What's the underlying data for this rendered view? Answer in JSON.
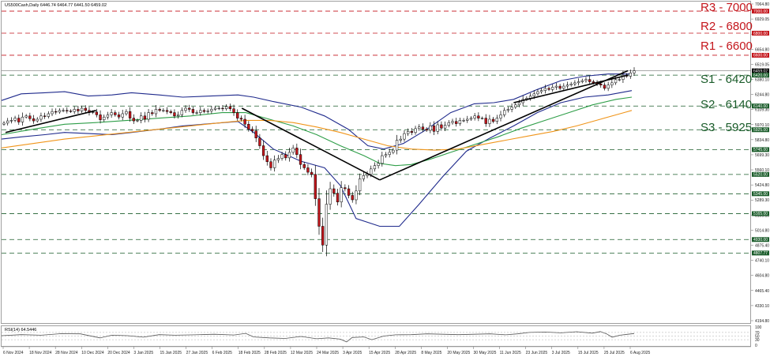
{
  "chart_title": "US500Cash,Daily  6446.74 6464.77 6441.50 6459.02",
  "rsi_title": "RSI(14) 64.5446",
  "colors": {
    "up": "#ffffff",
    "down": "#c4161c",
    "bb": "#1f2a8c",
    "ma_green": "#2e9e48",
    "ma_orange": "#f0951a",
    "trend": "#000000",
    "resistance": "#c4161c",
    "support": "#1a5c2a",
    "rsi": "#555555"
  },
  "labels": {
    "r3": "R3 - 7000",
    "r2": "R2 - 6800",
    "r1": "R1 - 6600",
    "s1": "S1 - 6420",
    "s2": "S2 - 6140",
    "s3": "S3 - 5925"
  },
  "price_ticks": [
    "7064.80",
    "6929.05",
    "6790.65",
    "6654.80",
    "6519.05",
    "6380.10",
    "6244.80",
    "6109.30",
    "5970.10",
    "5834.80",
    "5699.30",
    "5560.10",
    "5424.80",
    "5289.30",
    "5150.10",
    "5014.80",
    "4875.40",
    "4740.10",
    "4604.80",
    "4465.40",
    "4330.10",
    "4194.80"
  ],
  "level_tags": [
    "7000.00",
    "6800.00",
    "6600.00",
    "6459.02",
    "6420.00",
    "6140.00",
    "5925.00",
    "5745.00",
    "5520.00",
    "5345.00",
    "5165.00",
    "4930.00",
    "4807.77"
  ],
  "rsi_ticks": [
    "100",
    "70",
    "50",
    "30",
    "0"
  ],
  "date_ticks": [
    "6 Nov 2024",
    "18 Nov 2024",
    "28 Nov 2024",
    "10 Dec 2024",
    "20 Dec 2024",
    "3 Jan 2025",
    "15 Jan 2025",
    "27 Jan 2025",
    "6 Feb 2025",
    "18 Feb 2025",
    "28 Feb 2025",
    "12 Mar 2025",
    "24 Mar 2025",
    "3 Apr 2025",
    "15 Apr 2025",
    "28 Apr 2025",
    "8 May 2025",
    "20 May 2025",
    "30 May 2025",
    "11 Jun 2025",
    "23 Jun 2025",
    "3 Jul 2025",
    "15 Jul 2025",
    "25 Jul 2025",
    "6 Aug 2025"
  ],
  "chart_data": {
    "type": "candlestick",
    "y_range": [
      4194.8,
      7064.8
    ],
    "levels": {
      "resistance": [
        7000,
        6800,
        6600
      ],
      "support": [
        6420,
        6140,
        5925,
        5745,
        5520,
        5345,
        5165,
        4930,
        4807.77
      ],
      "current": 6459.02
    },
    "close_path": [
      5985,
      6005,
      6010,
      6030,
      5995,
      6040,
      6050,
      6025,
      6005,
      6020,
      6050,
      6045,
      6070,
      6090,
      6085,
      6100,
      6100,
      6095,
      6090,
      6110,
      6095,
      6120,
      6100,
      6080,
      6085,
      6060,
      6015,
      6040,
      6060,
      6080,
      6060,
      6040,
      6070,
      6090,
      6030,
      6005,
      6010,
      6050,
      6020,
      6080,
      6070,
      6110,
      6100,
      6100,
      6090,
      6080,
      6050,
      6060,
      6100,
      6120,
      6110,
      6080,
      6080,
      6100,
      6090,
      6095,
      6110,
      6120,
      6120,
      6115,
      6135,
      6115,
      6080,
      6030,
      6020,
      5975,
      5930,
      5915,
      5850,
      5780,
      5690,
      5635,
      5580,
      5650,
      5665,
      5700,
      5670,
      5720,
      5760,
      5700,
      5610,
      5580,
      5540,
      5520,
      5300,
      5050,
      4880,
      5250,
      5390,
      5350,
      5270,
      5400,
      5390,
      5330,
      5290,
      5370,
      5480,
      5510,
      5520,
      5570,
      5600,
      5620,
      5690,
      5700,
      5720,
      5740,
      5830,
      5840,
      5890,
      5910,
      5900,
      5935,
      5950,
      5930,
      5920,
      5960,
      5910,
      5970,
      5940,
      5965,
      5990,
      6000,
      5980,
      6010,
      6010,
      6020,
      6030,
      6050,
      6030,
      6030,
      5980,
      6020,
      6000,
      6030,
      6060,
      6100,
      6110,
      6130,
      6150,
      6170,
      6200,
      6210,
      6230,
      6250,
      6270,
      6280,
      6300,
      6290,
      6310,
      6320,
      6300,
      6320,
      6330,
      6340,
      6350,
      6360,
      6370,
      6380,
      6360,
      6350,
      6340,
      6330,
      6300,
      6330,
      6350,
      6380,
      6380,
      6420,
      6410,
      6440,
      6459
    ],
    "bb_upper": [
      [
        0,
        6190
      ],
      [
        25,
        6250
      ],
      [
        55,
        6260
      ],
      [
        80,
        6270
      ],
      [
        110,
        6230
      ],
      [
        140,
        6240
      ],
      [
        165,
        6260
      ],
      [
        200,
        6240
      ],
      [
        230,
        6220
      ],
      [
        265,
        6230
      ],
      [
        300,
        6240
      ],
      [
        320,
        6220
      ],
      [
        345,
        6180
      ],
      [
        380,
        6130
      ],
      [
        410,
        6050
      ],
      [
        440,
        5930
      ],
      [
        465,
        5780
      ],
      [
        485,
        5750
      ],
      [
        510,
        5800
      ],
      [
        540,
        5930
      ],
      [
        570,
        6080
      ],
      [
        600,
        6160
      ],
      [
        625,
        6170
      ],
      [
        650,
        6200
      ],
      [
        680,
        6290
      ],
      [
        710,
        6370
      ],
      [
        740,
        6410
      ],
      [
        770,
        6430
      ],
      [
        800,
        6430
      ]
    ],
    "bb_lower": [
      [
        0,
        5840
      ],
      [
        25,
        5860
      ],
      [
        55,
        5880
      ],
      [
        80,
        5900
      ],
      [
        110,
        5890
      ],
      [
        140,
        5880
      ],
      [
        165,
        5900
      ],
      [
        200,
        5930
      ],
      [
        230,
        5960
      ],
      [
        265,
        5980
      ],
      [
        300,
        6000
      ],
      [
        320,
        5900
      ],
      [
        345,
        5750
      ],
      [
        380,
        5640
      ],
      [
        410,
        5580
      ],
      [
        430,
        5420
      ],
      [
        450,
        5120
      ],
      [
        480,
        5050
      ],
      [
        505,
        5050
      ],
      [
        530,
        5250
      ],
      [
        560,
        5500
      ],
      [
        590,
        5730
      ],
      [
        620,
        5850
      ],
      [
        650,
        5960
      ],
      [
        680,
        6080
      ],
      [
        710,
        6170
      ],
      [
        740,
        6220
      ],
      [
        770,
        6240
      ],
      [
        800,
        6280
      ]
    ],
    "ma_green": [
      [
        0,
        5880
      ],
      [
        40,
        5930
      ],
      [
        80,
        5975
      ],
      [
        120,
        5990
      ],
      [
        160,
        6010
      ],
      [
        200,
        6030
      ],
      [
        240,
        6050
      ],
      [
        280,
        6080
      ],
      [
        310,
        6080
      ],
      [
        340,
        6020
      ],
      [
        370,
        5960
      ],
      [
        400,
        5880
      ],
      [
        430,
        5780
      ],
      [
        460,
        5690
      ],
      [
        480,
        5620
      ],
      [
        500,
        5600
      ],
      [
        520,
        5610
      ],
      [
        545,
        5660
      ],
      [
        570,
        5720
      ],
      [
        600,
        5790
      ],
      [
        630,
        5860
      ],
      [
        660,
        5940
      ],
      [
        690,
        6010
      ],
      [
        720,
        6080
      ],
      [
        750,
        6150
      ],
      [
        780,
        6200
      ],
      [
        800,
        6220
      ]
    ],
    "ma_orange": [
      [
        0,
        5760
      ],
      [
        40,
        5800
      ],
      [
        80,
        5840
      ],
      [
        120,
        5870
      ],
      [
        160,
        5900
      ],
      [
        200,
        5930
      ],
      [
        240,
        5960
      ],
      [
        280,
        5990
      ],
      [
        310,
        6010
      ],
      [
        340,
        6010
      ],
      [
        370,
        5990
      ],
      [
        400,
        5950
      ],
      [
        430,
        5900
      ],
      [
        460,
        5840
      ],
      [
        490,
        5780
      ],
      [
        520,
        5750
      ],
      [
        550,
        5740
      ],
      [
        580,
        5750
      ],
      [
        610,
        5790
      ],
      [
        640,
        5830
      ],
      [
        670,
        5870
      ],
      [
        700,
        5910
      ],
      [
        730,
        5960
      ],
      [
        760,
        6020
      ],
      [
        790,
        6080
      ],
      [
        800,
        6100
      ]
    ],
    "trendlines": [
      [
        [
          5,
          5900
        ],
        [
          120,
          6100
        ]
      ],
      [
        [
          305,
          6120
        ],
        [
          480,
          5470
        ]
      ],
      [
        [
          480,
          5470
        ],
        [
          795,
          6460
        ]
      ],
      [
        [
          650,
          6170
        ],
        [
          795,
          6420
        ]
      ]
    ],
    "rsi_path": [
      [
        0,
        52
      ],
      [
        25,
        58
      ],
      [
        50,
        55
      ],
      [
        75,
        63
      ],
      [
        100,
        62
      ],
      [
        125,
        40
      ],
      [
        140,
        55
      ],
      [
        160,
        52
      ],
      [
        180,
        44
      ],
      [
        200,
        58
      ],
      [
        220,
        55
      ],
      [
        245,
        57
      ],
      [
        270,
        60
      ],
      [
        295,
        56
      ],
      [
        310,
        65
      ],
      [
        320,
        45
      ],
      [
        340,
        40
      ],
      [
        360,
        37
      ],
      [
        380,
        48
      ],
      [
        400,
        35
      ],
      [
        415,
        40
      ],
      [
        430,
        33
      ],
      [
        438,
        18
      ],
      [
        445,
        42
      ],
      [
        460,
        45
      ],
      [
        470,
        30
      ],
      [
        485,
        50
      ],
      [
        500,
        57
      ],
      [
        520,
        58
      ],
      [
        540,
        62
      ],
      [
        560,
        60
      ],
      [
        580,
        58
      ],
      [
        600,
        60
      ],
      [
        620,
        62
      ],
      [
        640,
        57
      ],
      [
        655,
        62
      ],
      [
        670,
        70
      ],
      [
        690,
        72
      ],
      [
        710,
        68
      ],
      [
        730,
        74
      ],
      [
        750,
        66
      ],
      [
        760,
        75
      ],
      [
        768,
        62
      ],
      [
        775,
        44
      ],
      [
        785,
        55
      ],
      [
        795,
        60
      ],
      [
        803,
        64
      ]
    ],
    "rsi_levels": [
      70,
      50,
      30
    ]
  }
}
